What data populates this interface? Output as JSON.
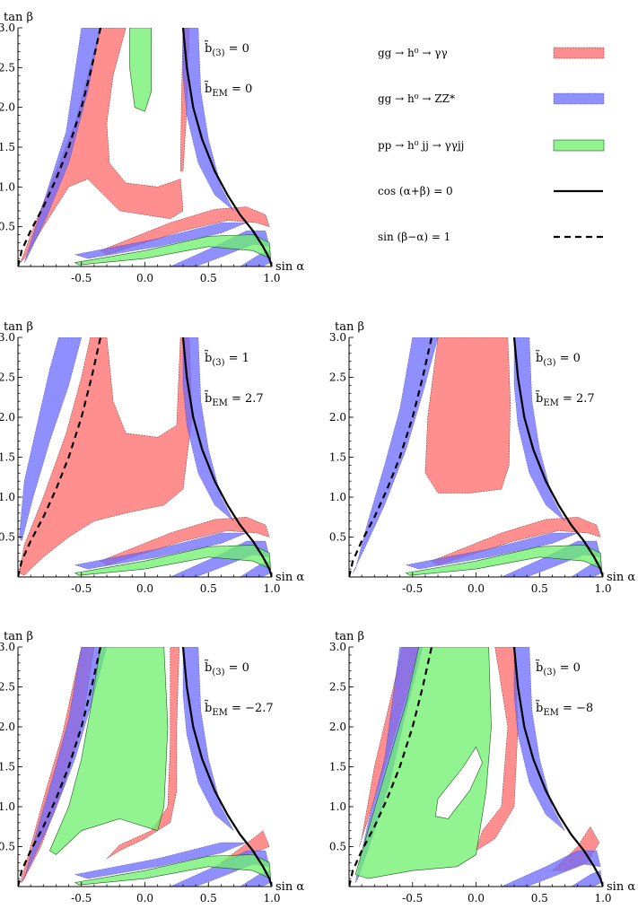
{
  "legend": {
    "items": [
      {
        "label": "gg → h⁰ → γγ",
        "swatch": "red"
      },
      {
        "label": "gg → h⁰ → ZZ*",
        "swatch": "blue"
      },
      {
        "label": "pp → h⁰ jj → γγjj",
        "swatch": "green"
      },
      {
        "label": "cos (α+β) = 0",
        "swatch": "solid"
      },
      {
        "label": "sin (β−α) = 1",
        "swatch": "dashed"
      }
    ]
  },
  "colors": {
    "red": "#ff6f6f",
    "blue": "#6a6aff",
    "green": "#6cf06c",
    "line": "#000000"
  },
  "chart_data": [
    {
      "type": "area",
      "panel": "top-left",
      "xlabel": "sin α",
      "ylabel": "tan β",
      "xlim": [
        -1,
        1
      ],
      "ylim": [
        0,
        3
      ],
      "xticks": [
        "-0.5",
        "0.0",
        "0.5",
        "1.0"
      ],
      "yticks": [
        "0.5",
        "1.0",
        "1.5",
        "2.0",
        "2.5",
        "3.0"
      ],
      "params": {
        "b3": "b̃(3) = 0",
        "bem": "b̃EM = 0"
      }
    },
    {
      "type": "area",
      "panel": "middle-left",
      "xlabel": "sin α",
      "ylabel": "tan β",
      "xlim": [
        -1,
        1
      ],
      "ylim": [
        0,
        3
      ],
      "xticks": [
        "-0.5",
        "0.0",
        "0.5",
        "1.0"
      ],
      "yticks": [
        "0.5",
        "1.0",
        "1.5",
        "2.0",
        "2.5",
        "3.0"
      ],
      "params": {
        "b3": "b̃(3) = 1",
        "bem": "b̃EM = 2.7"
      }
    },
    {
      "type": "area",
      "panel": "middle-right",
      "xlabel": "sin α",
      "ylabel": "tan β",
      "xlim": [
        -1,
        1
      ],
      "ylim": [
        0,
        3
      ],
      "xticks": [
        "-0.5",
        "0.0",
        "0.5",
        "1.0"
      ],
      "yticks": [
        "0.5",
        "1.0",
        "1.5",
        "2.0",
        "2.5",
        "3.0"
      ],
      "params": {
        "b3": "b̃(3) = 0",
        "bem": "b̃EM = 2.7"
      }
    },
    {
      "type": "area",
      "panel": "bottom-left",
      "xlabel": "sin α",
      "ylabel": "tan β",
      "xlim": [
        -1,
        1
      ],
      "ylim": [
        0,
        3
      ],
      "xticks": [
        "-0.5",
        "0.0",
        "0.5",
        "1.0"
      ],
      "yticks": [
        "0.5",
        "1.0",
        "1.5",
        "2.0",
        "2.5",
        "3.0"
      ],
      "params": {
        "b3": "b̃(3) = 0",
        "bem": "b̃EM = −2.7"
      }
    },
    {
      "type": "area",
      "panel": "bottom-right",
      "xlabel": "sin α",
      "ylabel": "tan β",
      "xlim": [
        -1,
        1
      ],
      "ylim": [
        0,
        3
      ],
      "xticks": [
        "-0.5",
        "0.0",
        "0.5",
        "1.0"
      ],
      "yticks": [
        "0.5",
        "1.0",
        "1.5",
        "2.0",
        "2.5",
        "3.0"
      ],
      "params": {
        "b3": "b̃(3) = 0",
        "bem": "b̃EM = −8"
      }
    }
  ]
}
